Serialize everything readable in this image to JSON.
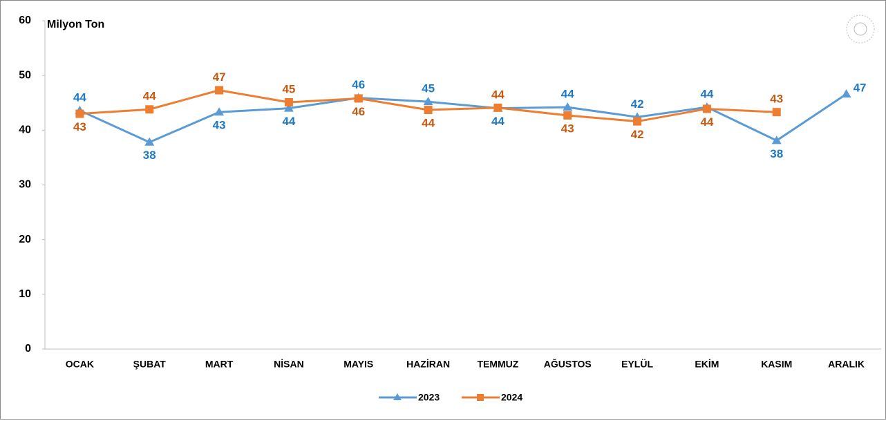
{
  "chart_data": {
    "type": "line",
    "y_axis_label": "Milyon Ton",
    "categories": [
      "OCAK",
      "ŞUBAT",
      "MART",
      "NİSAN",
      "MAYIS",
      "HAZİRAN",
      "TEMMUZ",
      "AĞUSTOS",
      "EYLÜL",
      "EKİM",
      "KASIM",
      "ARALIK"
    ],
    "series": [
      {
        "name": "2023",
        "color": "#5b9bd5",
        "label_color": "#1f7ac2",
        "marker": "triangle",
        "values": [
          43.6,
          37.8,
          43.3,
          44.0,
          45.9,
          45.2,
          44.0,
          44.2,
          42.4,
          44.2,
          38.1,
          46.6
        ],
        "value_labels": [
          "44",
          "38",
          "43",
          "44",
          "46",
          "45",
          "44",
          "44",
          "42",
          "44",
          "38",
          "47"
        ]
      },
      {
        "name": "2024",
        "color": "#ed7d31",
        "label_color": "#c55a11",
        "marker": "square",
        "values": [
          43.0,
          43.8,
          47.3,
          45.1,
          45.8,
          43.7,
          44.1,
          42.7,
          41.6,
          43.9,
          43.3,
          null
        ],
        "value_labels": [
          "43",
          "44",
          "47",
          "45",
          "46",
          "44",
          "44",
          "43",
          "42",
          "44",
          "43",
          null
        ]
      }
    ],
    "ylim": [
      0,
      60
    ],
    "yticks": [
      0,
      10,
      20,
      30,
      40,
      50,
      60
    ],
    "legend": "bottom"
  }
}
